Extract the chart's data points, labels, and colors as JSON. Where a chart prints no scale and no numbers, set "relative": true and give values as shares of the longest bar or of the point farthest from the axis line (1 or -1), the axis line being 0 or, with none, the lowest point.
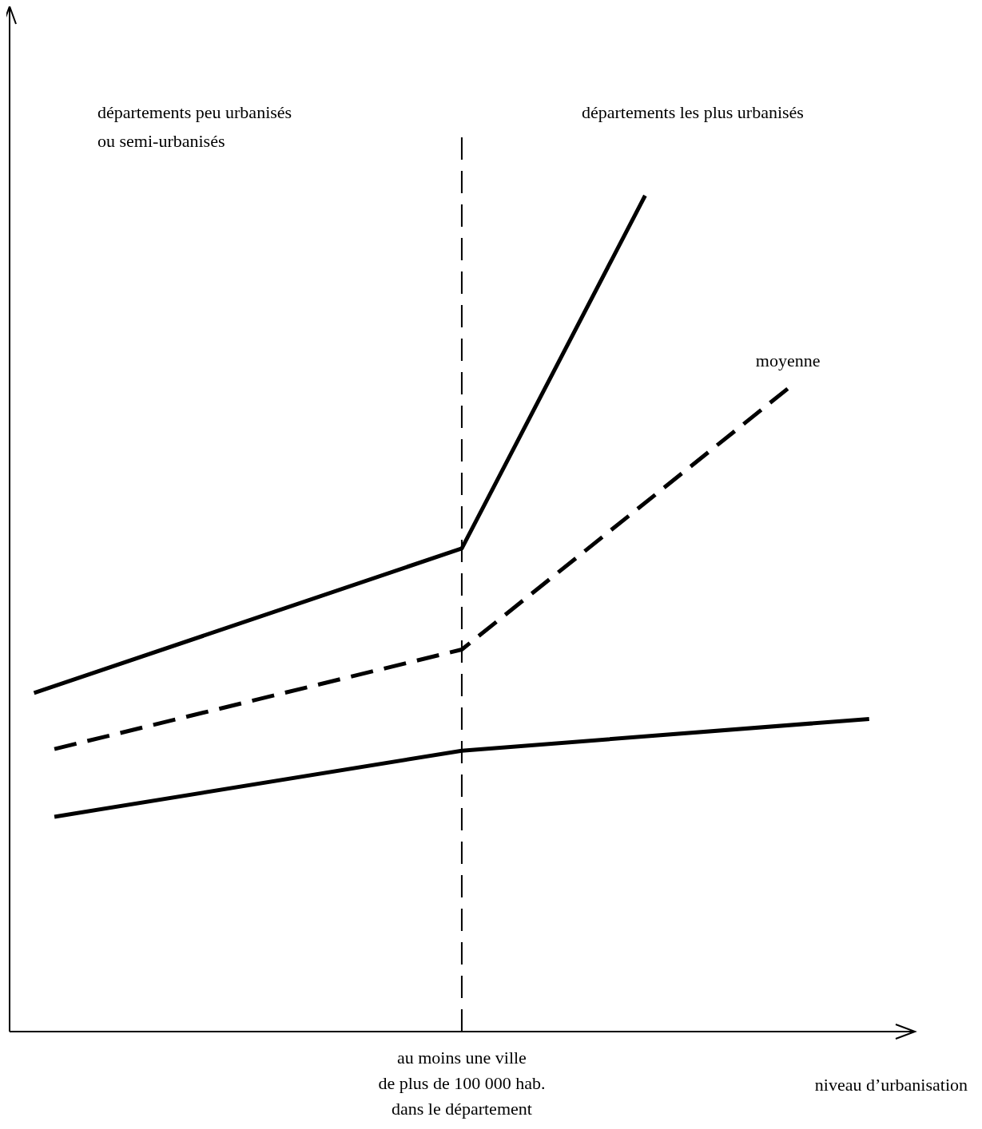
{
  "chart_data": {
    "type": "line",
    "relative": true,
    "xlabel": "niveau d’urbanisation",
    "categories": [
      null,
      null,
      null,
      null,
      null,
      null,
      null,
      null,
      null,
      null,
      null,
      null,
      null,
      null,
      null,
      null,
      null,
      null,
      null,
      null,
      null,
      null,
      null,
      null,
      null,
      null,
      null,
      null,
      null,
      null,
      null,
      null,
      null,
      null,
      null,
      null,
      null,
      null,
      null,
      null,
      null,
      null
    ],
    "series": [
      {
        "color": "#000000",
        "line_style": "solid",
        "values": [
          0.405,
          null,
          null,
          null,
          null,
          null,
          null,
          null,
          null,
          null,
          null,
          null,
          null,
          null,
          null,
          null,
          null,
          null,
          null,
          null,
          null,
          0.578,
          null,
          null,
          null,
          null,
          null,
          null,
          null,
          null,
          1,
          null,
          null,
          null,
          null,
          null,
          null,
          null,
          null,
          null,
          null,
          null
        ]
      },
      {
        "name": "moyenne",
        "color": "#000000",
        "line_style": "dashed",
        "values": [
          null,
          0.338,
          null,
          null,
          null,
          null,
          null,
          null,
          null,
          null,
          null,
          null,
          null,
          null,
          null,
          null,
          null,
          null,
          null,
          null,
          null,
          0.457,
          null,
          null,
          null,
          null,
          null,
          null,
          null,
          null,
          null,
          null,
          null,
          null,
          null,
          null,
          null,
          0.769,
          null,
          null,
          null,
          null
        ]
      },
      {
        "color": "#000000",
        "line_style": "solid",
        "values": [
          null,
          0.257,
          null,
          null,
          null,
          null,
          null,
          null,
          null,
          null,
          null,
          null,
          null,
          null,
          null,
          null,
          null,
          null,
          null,
          null,
          null,
          0.336,
          null,
          null,
          null,
          null,
          null,
          null,
          null,
          null,
          null,
          null,
          null,
          null,
          null,
          null,
          null,
          null,
          null,
          null,
          null,
          0.374
        ]
      }
    ],
    "annotations": [
      "départements peu urbanisés\nou semi-urbanisés",
      "départements les plus urbanisés",
      "au moins une ville\nde plus de 100 000 hab.\ndans le département"
    ]
  }
}
